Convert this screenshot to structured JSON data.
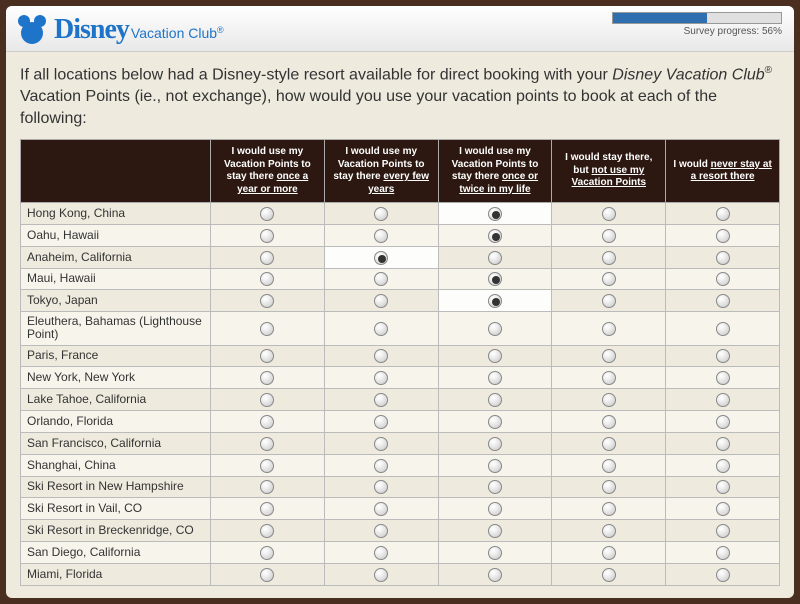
{
  "header": {
    "brand_script": "Disney",
    "brand_rest": "Vacation Club",
    "brand_reg": "®",
    "progress_pct": 56,
    "progress_label": "Survey progress: 56%"
  },
  "question": {
    "pre": "If all locations below had a Disney-style resort available for direct booking with your ",
    "emph": "Disney Vacation Club",
    "reg": "®",
    "post": " Vacation Points (ie., not exchange), how would you use your vacation points to book at each of the following:"
  },
  "columns": [
    {
      "pre": "I would use my Vacation Points to stay there ",
      "u": "once a year or more"
    },
    {
      "pre": "I would use my Vacation Points to stay there ",
      "u": "every few years"
    },
    {
      "pre": "I would use my Vacation Points to stay there ",
      "u": "once or twice in my life"
    },
    {
      "pre": "I would stay there, but ",
      "u": "not use my Vacation Points"
    },
    {
      "pre": "I would ",
      "u": "never stay at a resort there"
    }
  ],
  "rows": [
    {
      "label": "Hong Kong, China",
      "selected": 2
    },
    {
      "label": "Oahu, Hawaii",
      "selected": 2
    },
    {
      "label": "Anaheim, California",
      "selected": 1
    },
    {
      "label": "Maui, Hawaii",
      "selected": 2
    },
    {
      "label": "Tokyo, Japan",
      "selected": 2
    },
    {
      "label": "Eleuthera, Bahamas (Lighthouse Point)",
      "selected": null
    },
    {
      "label": "Paris, France",
      "selected": null
    },
    {
      "label": "New York, New York",
      "selected": null
    },
    {
      "label": "Lake Tahoe, California",
      "selected": null
    },
    {
      "label": "Orlando, Florida",
      "selected": null
    },
    {
      "label": "San Francisco, California",
      "selected": null
    },
    {
      "label": "Shanghai, China",
      "selected": null
    },
    {
      "label": "Ski Resort in New Hampshire",
      "selected": null
    },
    {
      "label": "Ski Resort in Vail, CO",
      "selected": null
    },
    {
      "label": "Ski Resort in Breckenridge, CO",
      "selected": null
    },
    {
      "label": "San Diego, California",
      "selected": null
    },
    {
      "label": "Miami, Florida",
      "selected": null
    }
  ],
  "colors": {
    "page_bg": "#4a2e1f",
    "card_bg": "#eeeade",
    "header_dark": "#2c1810",
    "brand_blue": "#1e74c9",
    "progress_fill": "#2f6fb0"
  }
}
